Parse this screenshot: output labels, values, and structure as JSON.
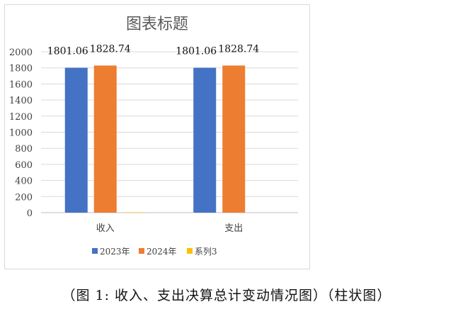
{
  "caption": "（图 1:  收入、支出决算总计变动情况图）（柱状图）",
  "chart_data": {
    "type": "bar",
    "title": "图表标题",
    "categories": [
      "收入",
      "支出"
    ],
    "series": [
      {
        "name": "2023年",
        "values": [
          1801.06,
          1801.06
        ],
        "labels": [
          "1801.06",
          "1801.06"
        ],
        "color": "#4472C4"
      },
      {
        "name": "2024年",
        "values": [
          1828.74,
          1828.74
        ],
        "labels": [
          "1828.74",
          "1828.74"
        ],
        "color": "#ED7D31"
      },
      {
        "name": "系列3",
        "values": [
          5,
          0
        ],
        "labels": [
          "",
          ""
        ],
        "color": "#FFC000"
      }
    ],
    "ylim": [
      0,
      2000
    ],
    "yticks": [
      "0",
      "200",
      "400",
      "600",
      "800",
      "1000",
      "1200",
      "1400",
      "1600",
      "1800",
      "2000"
    ],
    "grid": true,
    "legend_position": "bottom",
    "xlabel": "",
    "ylabel": ""
  }
}
